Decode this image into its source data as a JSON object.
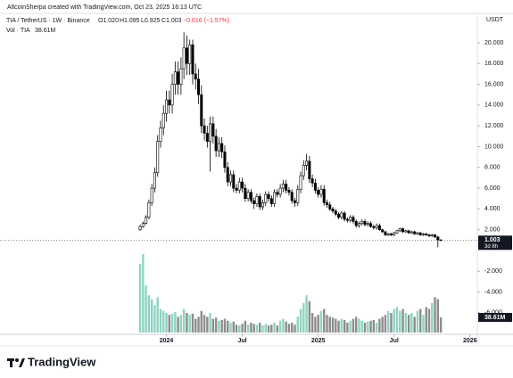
{
  "attribution": "AltcoinSherpa created with TradingView.com, Oct 23, 2025 16:13 UTC",
  "header": {
    "symbol": "TIA / TetherUS · 1W · Binance",
    "ohlc": [
      "O1.020",
      "H1.095",
      "L0.925",
      "C1.003"
    ],
    "change": "−0.016 (−1.57%)",
    "volume": "Vol · TIA",
    "volume_value": "38.61M"
  },
  "footer": "TradingView",
  "chart_data": {
    "type": "candlestick",
    "y_axis_label": "USDT",
    "categories": [
      null,
      null,
      null,
      null,
      null,
      null,
      null,
      null,
      null,
      null,
      null,
      null,
      null,
      null,
      null,
      null,
      null,
      null,
      null,
      null,
      null,
      null,
      null,
      null,
      null,
      null,
      null,
      null,
      null,
      null,
      null,
      null,
      null,
      null,
      null,
      null,
      null,
      null,
      null,
      null,
      null,
      null,
      null,
      null,
      null,
      null,
      null,
      null,
      null,
      null,
      null,
      null,
      null,
      null,
      null,
      null,
      null,
      null,
      null,
      null,
      null,
      null,
      null,
      null,
      null,
      null,
      null,
      null,
      null,
      null,
      null,
      null,
      null,
      null,
      null,
      null,
      null,
      null,
      null,
      null,
      null,
      null,
      null,
      null,
      null,
      null,
      null,
      null,
      null,
      null,
      null,
      null,
      null,
      null,
      null,
      null,
      null,
      null,
      null,
      null,
      null,
      null,
      null,
      null
    ],
    "open": [
      2.0,
      2.3,
      2.6,
      3.2,
      4.6,
      6.0,
      7.5,
      10.5,
      11.8,
      13.2,
      14.5,
      14.0,
      16.0,
      17.2,
      16.0,
      17.5,
      19.5,
      18.0,
      19.8,
      17.0,
      16.5,
      15.0,
      12.0,
      11.3,
      10.5,
      12.2,
      11.0,
      9.6,
      10.3,
      9.5,
      8.0,
      6.6,
      7.3,
      6.0,
      5.8,
      6.6,
      6.0,
      5.0,
      5.6,
      4.8,
      4.5,
      5.2,
      4.2,
      4.6,
      5.4,
      5.0,
      4.5,
      5.6,
      5.4,
      6.0,
      6.4,
      5.8,
      5.6,
      4.8,
      4.6,
      5.9,
      7.2,
      8.2,
      8.6,
      6.9,
      6.5,
      5.8,
      5.4,
      5.9,
      4.6,
      4.4,
      4.0,
      3.8,
      3.5,
      3.2,
      3.6,
      3.0,
      2.9,
      3.2,
      2.8,
      2.4,
      2.6,
      2.8,
      2.5,
      2.6,
      2.3,
      2.2,
      2.4,
      2.0,
      1.8,
      1.5,
      1.6,
      1.5,
      1.7,
      1.9,
      2.1,
      1.8,
      1.9,
      1.7,
      1.8,
      1.6,
      1.7,
      1.5,
      1.6,
      1.5,
      1.4,
      1.5,
      1.3,
      1.02
    ],
    "high": [
      2.5,
      2.8,
      3.4,
      4.9,
      6.4,
      8.0,
      11.1,
      12.5,
      14.0,
      15.4,
      15.4,
      17.0,
      18.2,
      18.2,
      18.6,
      21.0,
      20.7,
      20.3,
      20.3,
      18.0,
      17.5,
      15.9,
      12.7,
      12.0,
      12.9,
      12.9,
      11.7,
      10.9,
      10.9,
      10.1,
      8.5,
      7.7,
      7.7,
      6.4,
      7.0,
      7.0,
      6.4,
      5.9,
      5.9,
      5.1,
      5.5,
      5.5,
      4.9,
      5.7,
      5.7,
      5.3,
      5.9,
      5.9,
      6.4,
      6.8,
      6.8,
      6.1,
      5.9,
      5.1,
      6.3,
      7.6,
      8.7,
      9.3,
      9.1,
      7.3,
      6.9,
      6.1,
      6.3,
      6.3,
      4.9,
      4.7,
      4.2,
      4.0,
      3.7,
      3.8,
      3.8,
      3.2,
      3.4,
      3.4,
      3.0,
      2.8,
      3.0,
      3.0,
      2.8,
      2.8,
      2.5,
      2.6,
      2.6,
      2.1,
      1.9,
      1.7,
      1.7,
      1.8,
      2.0,
      2.2,
      2.2,
      2.0,
      2.0,
      1.9,
      1.9,
      1.8,
      1.8,
      1.7,
      1.7,
      1.6,
      1.6,
      1.6,
      1.4,
      1.095
    ],
    "low": [
      1.9,
      2.2,
      2.5,
      3.0,
      4.3,
      5.6,
      7.1,
      9.9,
      11.1,
      12.4,
      13.2,
      13.2,
      15.0,
      15.0,
      15.0,
      16.5,
      16.9,
      16.9,
      16.0,
      15.5,
      14.1,
      11.3,
      10.6,
      9.9,
      7.6,
      10.3,
      9.0,
      9.0,
      8.9,
      7.5,
      6.2,
      6.2,
      5.6,
      5.5,
      5.5,
      5.6,
      4.7,
      4.7,
      4.5,
      4.0,
      4.2,
      3.9,
      3.9,
      4.3,
      4.7,
      4.2,
      4.2,
      5.1,
      5.1,
      5.6,
      5.5,
      5.3,
      4.5,
      4.2,
      4.3,
      5.5,
      6.8,
      7.7,
      6.5,
      6.1,
      5.5,
      5.1,
      5.1,
      4.3,
      4.1,
      3.8,
      3.6,
      3.3,
      3.0,
      3.0,
      2.8,
      2.7,
      2.7,
      2.6,
      2.2,
      2.2,
      2.4,
      2.3,
      2.3,
      2.2,
      2.0,
      2.0,
      1.9,
      1.7,
      1.4,
      1.4,
      1.4,
      1.4,
      1.6,
      1.8,
      1.7,
      1.7,
      1.6,
      1.6,
      1.5,
      1.5,
      1.4,
      1.4,
      1.4,
      1.3,
      1.3,
      1.2,
      0.3,
      0.925
    ],
    "close": [
      2.3,
      2.6,
      3.2,
      4.6,
      6.0,
      7.5,
      10.5,
      11.8,
      13.2,
      14.5,
      14.0,
      16.0,
      17.2,
      16.0,
      17.5,
      19.5,
      18.0,
      19.8,
      17.0,
      16.5,
      15.0,
      12.0,
      11.3,
      10.5,
      12.2,
      11.0,
      9.6,
      10.3,
      9.5,
      8.0,
      6.6,
      7.3,
      6.0,
      5.8,
      6.6,
      6.0,
      5.0,
      5.6,
      4.8,
      4.5,
      5.2,
      4.2,
      4.6,
      5.4,
      5.0,
      4.5,
      5.6,
      5.4,
      6.0,
      6.4,
      5.8,
      5.6,
      4.8,
      4.6,
      5.9,
      7.2,
      8.2,
      8.6,
      6.9,
      6.5,
      5.8,
      5.4,
      5.9,
      4.6,
      4.4,
      4.0,
      3.8,
      3.5,
      3.2,
      3.6,
      3.0,
      2.9,
      3.2,
      2.8,
      2.4,
      2.6,
      2.8,
      2.5,
      2.6,
      2.3,
      2.2,
      2.4,
      2.0,
      1.8,
      1.5,
      1.6,
      1.5,
      1.7,
      1.9,
      2.1,
      1.8,
      1.9,
      1.7,
      1.8,
      1.6,
      1.7,
      1.5,
      1.6,
      1.5,
      1.4,
      1.5,
      1.3,
      1.02,
      1.003
    ],
    "volume": [
      175,
      200,
      120,
      95,
      85,
      70,
      90,
      60,
      55,
      50,
      45,
      48,
      52,
      40,
      45,
      60,
      50,
      45,
      48,
      35,
      40,
      55,
      45,
      40,
      50,
      35,
      38,
      30,
      32,
      35,
      30,
      25,
      28,
      20,
      18,
      22,
      30,
      20,
      25,
      22,
      20,
      25,
      18,
      22,
      18,
      20,
      25,
      18,
      30,
      35,
      28,
      22,
      25,
      20,
      40,
      60,
      75,
      95,
      80,
      50,
      40,
      45,
      55,
      60,
      45,
      40,
      38,
      35,
      30,
      35,
      32,
      25,
      30,
      35,
      40,
      35,
      30,
      25,
      28,
      30,
      32,
      25,
      35,
      40,
      45,
      55,
      50,
      60,
      65,
      55,
      60,
      50,
      45,
      50,
      40,
      55,
      60,
      45,
      65,
      60,
      75,
      90,
      85,
      38.61
    ],
    "volume_value_label": "38.61M",
    "countdown": "3d 8h",
    "xlim": [
      -48,
      115.5
    ],
    "xticks": [
      {
        "value": 9,
        "label": "2024"
      },
      {
        "value": 35,
        "label": "Jul"
      },
      {
        "value": 61,
        "label": "2025"
      },
      {
        "value": 87,
        "label": "Jul"
      },
      {
        "value": 113,
        "label": "2026"
      }
    ],
    "ylim": [
      -8.07,
      22.83
    ],
    "yticks": [
      {
        "value": -6,
        "label": "-6.000"
      },
      {
        "value": -4,
        "label": "-4.000"
      },
      {
        "value": -2,
        "label": "-2.000"
      },
      {
        "value": 2,
        "label": "2.000"
      },
      {
        "value": 4,
        "label": "4.000"
      },
      {
        "value": 6,
        "label": "6.000"
      },
      {
        "value": 8,
        "label": "8.000"
      },
      {
        "value": 10,
        "label": "10.000"
      },
      {
        "value": 12,
        "label": "12.000"
      },
      {
        "value": 14,
        "label": "14.000"
      },
      {
        "value": 16,
        "label": "16.000"
      },
      {
        "value": 18,
        "label": "18.000"
      },
      {
        "value": 20,
        "label": "20.000"
      }
    ],
    "vlim": [
      0,
      200
    ],
    "up_color": "#ffffff",
    "down_color": "#000000",
    "wick_color": "#000000",
    "volume_up_color": "#8fd3c1",
    "volume_down_color": "#8c8c8c"
  }
}
